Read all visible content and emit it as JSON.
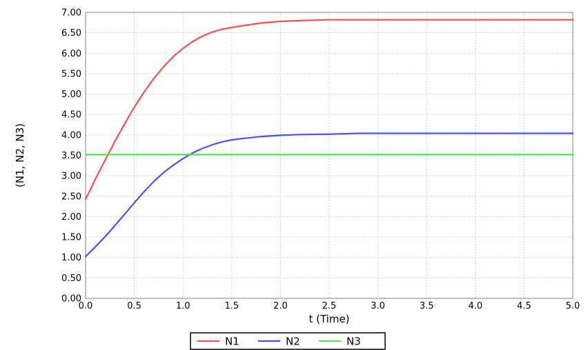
{
  "chart_data": {
    "type": "line",
    "xlabel": "t (Time)",
    "ylabel": "(N1, N2, N3)",
    "xlim": [
      0,
      5
    ],
    "ylim": [
      0,
      7
    ],
    "xticks": [
      0,
      0.5,
      1,
      1.5,
      2,
      2.5,
      3,
      3.5,
      4,
      4.5,
      5
    ],
    "xtick_labels": [
      "0.0",
      "0.5",
      "1.0",
      "1.5",
      "2.0",
      "2.5",
      "3.0",
      "3.5",
      "4.0",
      "4.5",
      "5.0"
    ],
    "yticks": [
      0,
      0.5,
      1,
      1.5,
      2,
      2.5,
      3,
      3.5,
      4,
      4.5,
      5,
      5.5,
      6,
      6.5,
      7
    ],
    "ytick_labels": [
      "0.00",
      "0.50",
      "1.00",
      "1.50",
      "2.00",
      "2.50",
      "3.00",
      "3.50",
      "4.00",
      "4.50",
      "5.00",
      "5.50",
      "6.00",
      "6.50",
      "7.00"
    ],
    "grid": true,
    "legend_position": "bottom-center",
    "series": [
      {
        "name": "N1",
        "color": "#ff4d4d",
        "x": [
          0,
          0.1,
          0.2,
          0.3,
          0.4,
          0.5,
          0.6,
          0.7,
          0.8,
          0.9,
          1.0,
          1.1,
          1.2,
          1.3,
          1.4,
          1.5,
          1.6,
          1.8,
          2.0,
          2.2,
          2.5,
          3.0,
          3.5,
          4.0,
          4.5,
          5.0
        ],
        "y": [
          2.42,
          2.92,
          3.38,
          3.84,
          4.27,
          4.68,
          5.05,
          5.38,
          5.67,
          5.92,
          6.12,
          6.29,
          6.42,
          6.52,
          6.59,
          6.63,
          6.67,
          6.74,
          6.78,
          6.8,
          6.82,
          6.82,
          6.82,
          6.82,
          6.82,
          6.82
        ]
      },
      {
        "name": "N2",
        "color": "#4d4dff",
        "x": [
          0,
          0.1,
          0.2,
          0.3,
          0.4,
          0.5,
          0.6,
          0.7,
          0.8,
          0.9,
          1.0,
          1.1,
          1.2,
          1.3,
          1.4,
          1.5,
          1.6,
          1.8,
          2.0,
          2.2,
          2.5,
          2.8,
          3.0,
          3.5,
          4.0,
          4.5,
          5.0
        ],
        "y": [
          1.02,
          1.26,
          1.51,
          1.78,
          2.06,
          2.34,
          2.61,
          2.86,
          3.08,
          3.26,
          3.42,
          3.56,
          3.67,
          3.76,
          3.83,
          3.88,
          3.91,
          3.96,
          3.99,
          4.01,
          4.02,
          4.04,
          4.04,
          4.04,
          4.04,
          4.04,
          4.04
        ]
      },
      {
        "name": "N3",
        "color": "#4de64d",
        "x": [
          0,
          5
        ],
        "y": [
          3.52,
          3.52
        ]
      }
    ]
  }
}
